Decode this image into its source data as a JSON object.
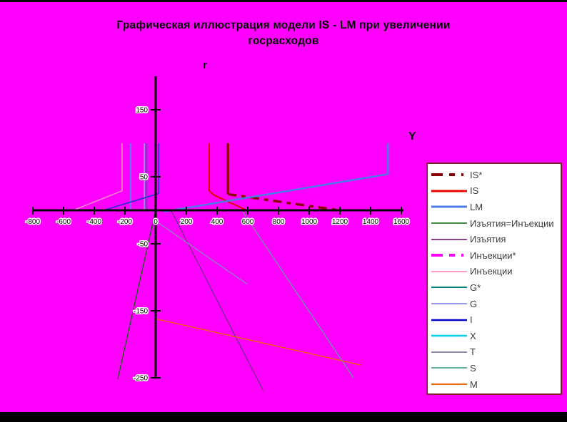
{
  "title": {
    "line1": "Графическая иллюстрация модели IS - LM при увеличении",
    "line2": "госрасходов"
  },
  "slide": {
    "background_color": "#FF00FF",
    "top_bar_color": "#000000",
    "bottom_bar_color": "#000000",
    "legend_border_color": "#7A2233",
    "legend_background": "#FFFFFF"
  },
  "chart_data": {
    "type": "line",
    "title": "Графическая иллюстрация модели IS - LM при увеличении госрасходов",
    "x_axis": {
      "label": "Y",
      "ticks": [
        -800,
        -600,
        -400,
        -200,
        0,
        200,
        400,
        600,
        800,
        1000,
        1200,
        1400,
        1600
      ],
      "axis_range": [
        -805,
        1613
      ],
      "grid": false
    },
    "y_axis": {
      "label": "r",
      "ticks": [
        150,
        50,
        -50,
        -150,
        -250
      ],
      "axis_range": [
        -250,
        200
      ],
      "grid": false
    },
    "legend_position": "right",
    "series": [
      {
        "id": "injections",
        "label": "Инъекции",
        "color": "#FF9DC8",
        "width": 1.3,
        "points": [
          [
            -219,
            100
          ],
          [
            -219,
            29
          ],
          [
            -526,
            1
          ]
        ]
      },
      {
        "id": "x",
        "label": "X",
        "color": "#33AAEE",
        "width": 1.5,
        "points": [
          [
            -163,
            100
          ],
          [
            -163,
            0
          ]
        ]
      },
      {
        "id": "g",
        "label": "G",
        "color": "#9999EE",
        "width": 1.5,
        "points": [
          [
            -74,
            100
          ],
          [
            -74,
            0
          ]
        ]
      },
      {
        "id": "g-star",
        "label": "G*",
        "color": "#008080",
        "width": 1.5,
        "points": [
          [
            -58,
            100
          ],
          [
            -58,
            0
          ]
        ]
      },
      {
        "id": "i",
        "label": "I",
        "color": "#2233CC",
        "width": 1.6,
        "points": [
          [
            19,
            100
          ],
          [
            19,
            25
          ],
          [
            -340,
            0
          ]
        ]
      },
      {
        "id": "leakages-injections",
        "label": "Изъятия=Инъекции",
        "color": "#006600",
        "width": 1.2,
        "points": [
          [
            0,
            0
          ],
          [
            -247,
            -252
          ]
        ]
      },
      {
        "id": "leakages",
        "label": "Изъятия",
        "color": "#663377",
        "width": 1.2,
        "points": [
          [
            100,
            0
          ],
          [
            700,
            -269
          ]
        ]
      },
      {
        "id": "t",
        "label": "T",
        "color": "#8A8ABB",
        "width": 1.2,
        "points": [
          [
            19,
            -19
          ],
          [
            595,
            -110
          ]
        ]
      },
      {
        "id": "s",
        "label": "S",
        "color": "#6A9999",
        "width": 1.2,
        "points": [
          [
            567,
            -2
          ],
          [
            1288,
            -250
          ]
        ]
      },
      {
        "id": "m",
        "label": "M",
        "color": "#EE6600",
        "width": 1.3,
        "points": [
          [
            0,
            -162
          ],
          [
            1335,
            -231
          ]
        ]
      },
      {
        "id": "is",
        "label": "IS",
        "color": "#E80000",
        "width": 2,
        "points": [
          [
            349,
            100
          ],
          [
            349,
            29
          ],
          [
            377,
            23
          ],
          [
            600,
            -1
          ]
        ]
      },
      {
        "id": "is-star",
        "label": "IS*",
        "color": "#8B0000",
        "width": 3.5,
        "dash": "12,7,6,7",
        "points_solid": [
          [
            470,
            100
          ],
          [
            470,
            24
          ]
        ],
        "points_dashed": [
          [
            470,
            24
          ],
          [
            1195,
            0
          ]
        ]
      },
      {
        "id": "lm",
        "label": "LM",
        "color": "#4D79E8",
        "width": 2.5,
        "points": [
          [
            56,
            -2
          ],
          [
            1512,
            54
          ],
          [
            1512,
            100
          ]
        ]
      },
      {
        "id": "injections-star",
        "label": "Инъекции*",
        "color": "#FF00FF",
        "width": 3.5,
        "dash": "12,7,6,7",
        "points": []
      }
    ],
    "legend": [
      {
        "id": "is-star",
        "label": "IS*",
        "color": "#8B0000",
        "width": 4,
        "dash": "16,9,8,9,3"
      },
      {
        "id": "is",
        "label": "IS",
        "color": "#EE0000",
        "width": 3
      },
      {
        "id": "lm",
        "label": "LM",
        "color": "#4D79E8",
        "width": 3
      },
      {
        "id": "leakages-injections",
        "label": "Изъятия=Инъекции",
        "color": "#006600",
        "width": 1.5
      },
      {
        "id": "leakages",
        "label": "Изъятия",
        "color": "#660066",
        "width": 1.5
      },
      {
        "id": "injections-star",
        "label": "Инъекции*",
        "color": "#FF00FF",
        "width": 4,
        "dash": "16,9,8,9,3"
      },
      {
        "id": "injections",
        "label": "Инъекции",
        "color": "#FF9DC8",
        "width": 2
      },
      {
        "id": "g-star",
        "label": "G*",
        "color": "#008080",
        "width": 2
      },
      {
        "id": "g",
        "label": "G",
        "color": "#9999EE",
        "width": 2
      },
      {
        "id": "i",
        "label": "I",
        "color": "#0000CC",
        "width": 2.5
      },
      {
        "id": "x",
        "label": "X",
        "color": "#00CCEE",
        "width": 2.5
      },
      {
        "id": "t",
        "label": "T",
        "color": "#666699",
        "width": 1.5
      },
      {
        "id": "s",
        "label": "S",
        "color": "#339973",
        "width": 1.5
      },
      {
        "id": "m",
        "label": "M",
        "color": "#EE6600",
        "width": 2
      }
    ]
  }
}
